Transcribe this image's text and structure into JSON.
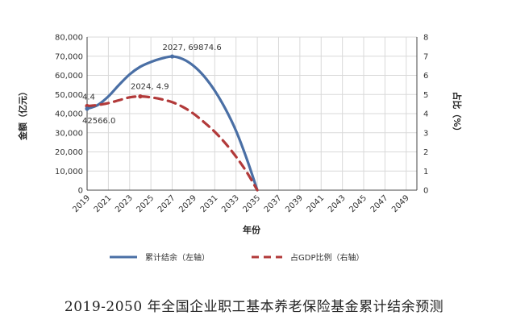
{
  "caption": "2019-2050 年全国企业职工基本养老保险基金累计结余预测",
  "chart_data": {
    "type": "line",
    "title": "",
    "xlabel": "年份",
    "ylabel": "金额（亿元）",
    "y2label": "占比（%）",
    "x_ticks": [
      "2019",
      "2021",
      "2023",
      "2025",
      "2027",
      "2029",
      "2031",
      "2033",
      "2035",
      "2037",
      "2039",
      "2041",
      "2043",
      "2045",
      "2047",
      "2049"
    ],
    "xlim": [
      2019,
      2050
    ],
    "ylim": [
      0,
      80000
    ],
    "y2lim": [
      0,
      8
    ],
    "y_ticks": [
      "0",
      "10,000",
      "20,000",
      "30,000",
      "40,000",
      "50,000",
      "60,000",
      "70,000",
      "80,000"
    ],
    "y2_ticks": [
      "0",
      "1",
      "2",
      "3",
      "4",
      "5",
      "6",
      "7",
      "8"
    ],
    "grid": true,
    "legend_position": "bottom",
    "series": [
      {
        "name": "累计结余（左轴）",
        "axis": "left",
        "style": "solid",
        "color": "#4a6fa5",
        "x": [
          2019,
          2020,
          2021,
          2022,
          2023,
          2024,
          2025,
          2026,
          2027,
          2028,
          2029,
          2030,
          2031,
          2032,
          2033,
          2034,
          2035
        ],
        "values": [
          42566.0,
          44500,
          49000,
          55000,
          60500,
          64500,
          67000,
          68800,
          69874.6,
          68500,
          65000,
          59500,
          52000,
          42500,
          31000,
          16500,
          0
        ]
      },
      {
        "name": "占GDP比例（右轴）",
        "axis": "right",
        "style": "dashed",
        "color": "#b23a3a",
        "x": [
          2019,
          2020,
          2021,
          2022,
          2023,
          2024,
          2025,
          2026,
          2027,
          2028,
          2029,
          2030,
          2031,
          2032,
          2033,
          2034,
          2035
        ],
        "values": [
          4.4,
          4.45,
          4.55,
          4.7,
          4.85,
          4.9,
          4.85,
          4.75,
          4.6,
          4.35,
          4.0,
          3.55,
          3.05,
          2.45,
          1.75,
          0.95,
          0
        ]
      }
    ],
    "annotations": [
      {
        "text": "2027, 69874.6",
        "x": 2027,
        "y": 69874.6,
        "axis": "left"
      },
      {
        "text": "2024, 4.9",
        "x": 2024,
        "y": 4.9,
        "axis": "right"
      },
      {
        "text": "4.4",
        "x": 2019,
        "y": 4.4,
        "axis": "right"
      },
      {
        "text": "42566.0",
        "x": 2019,
        "y": 42566.0,
        "axis": "left"
      }
    ]
  }
}
